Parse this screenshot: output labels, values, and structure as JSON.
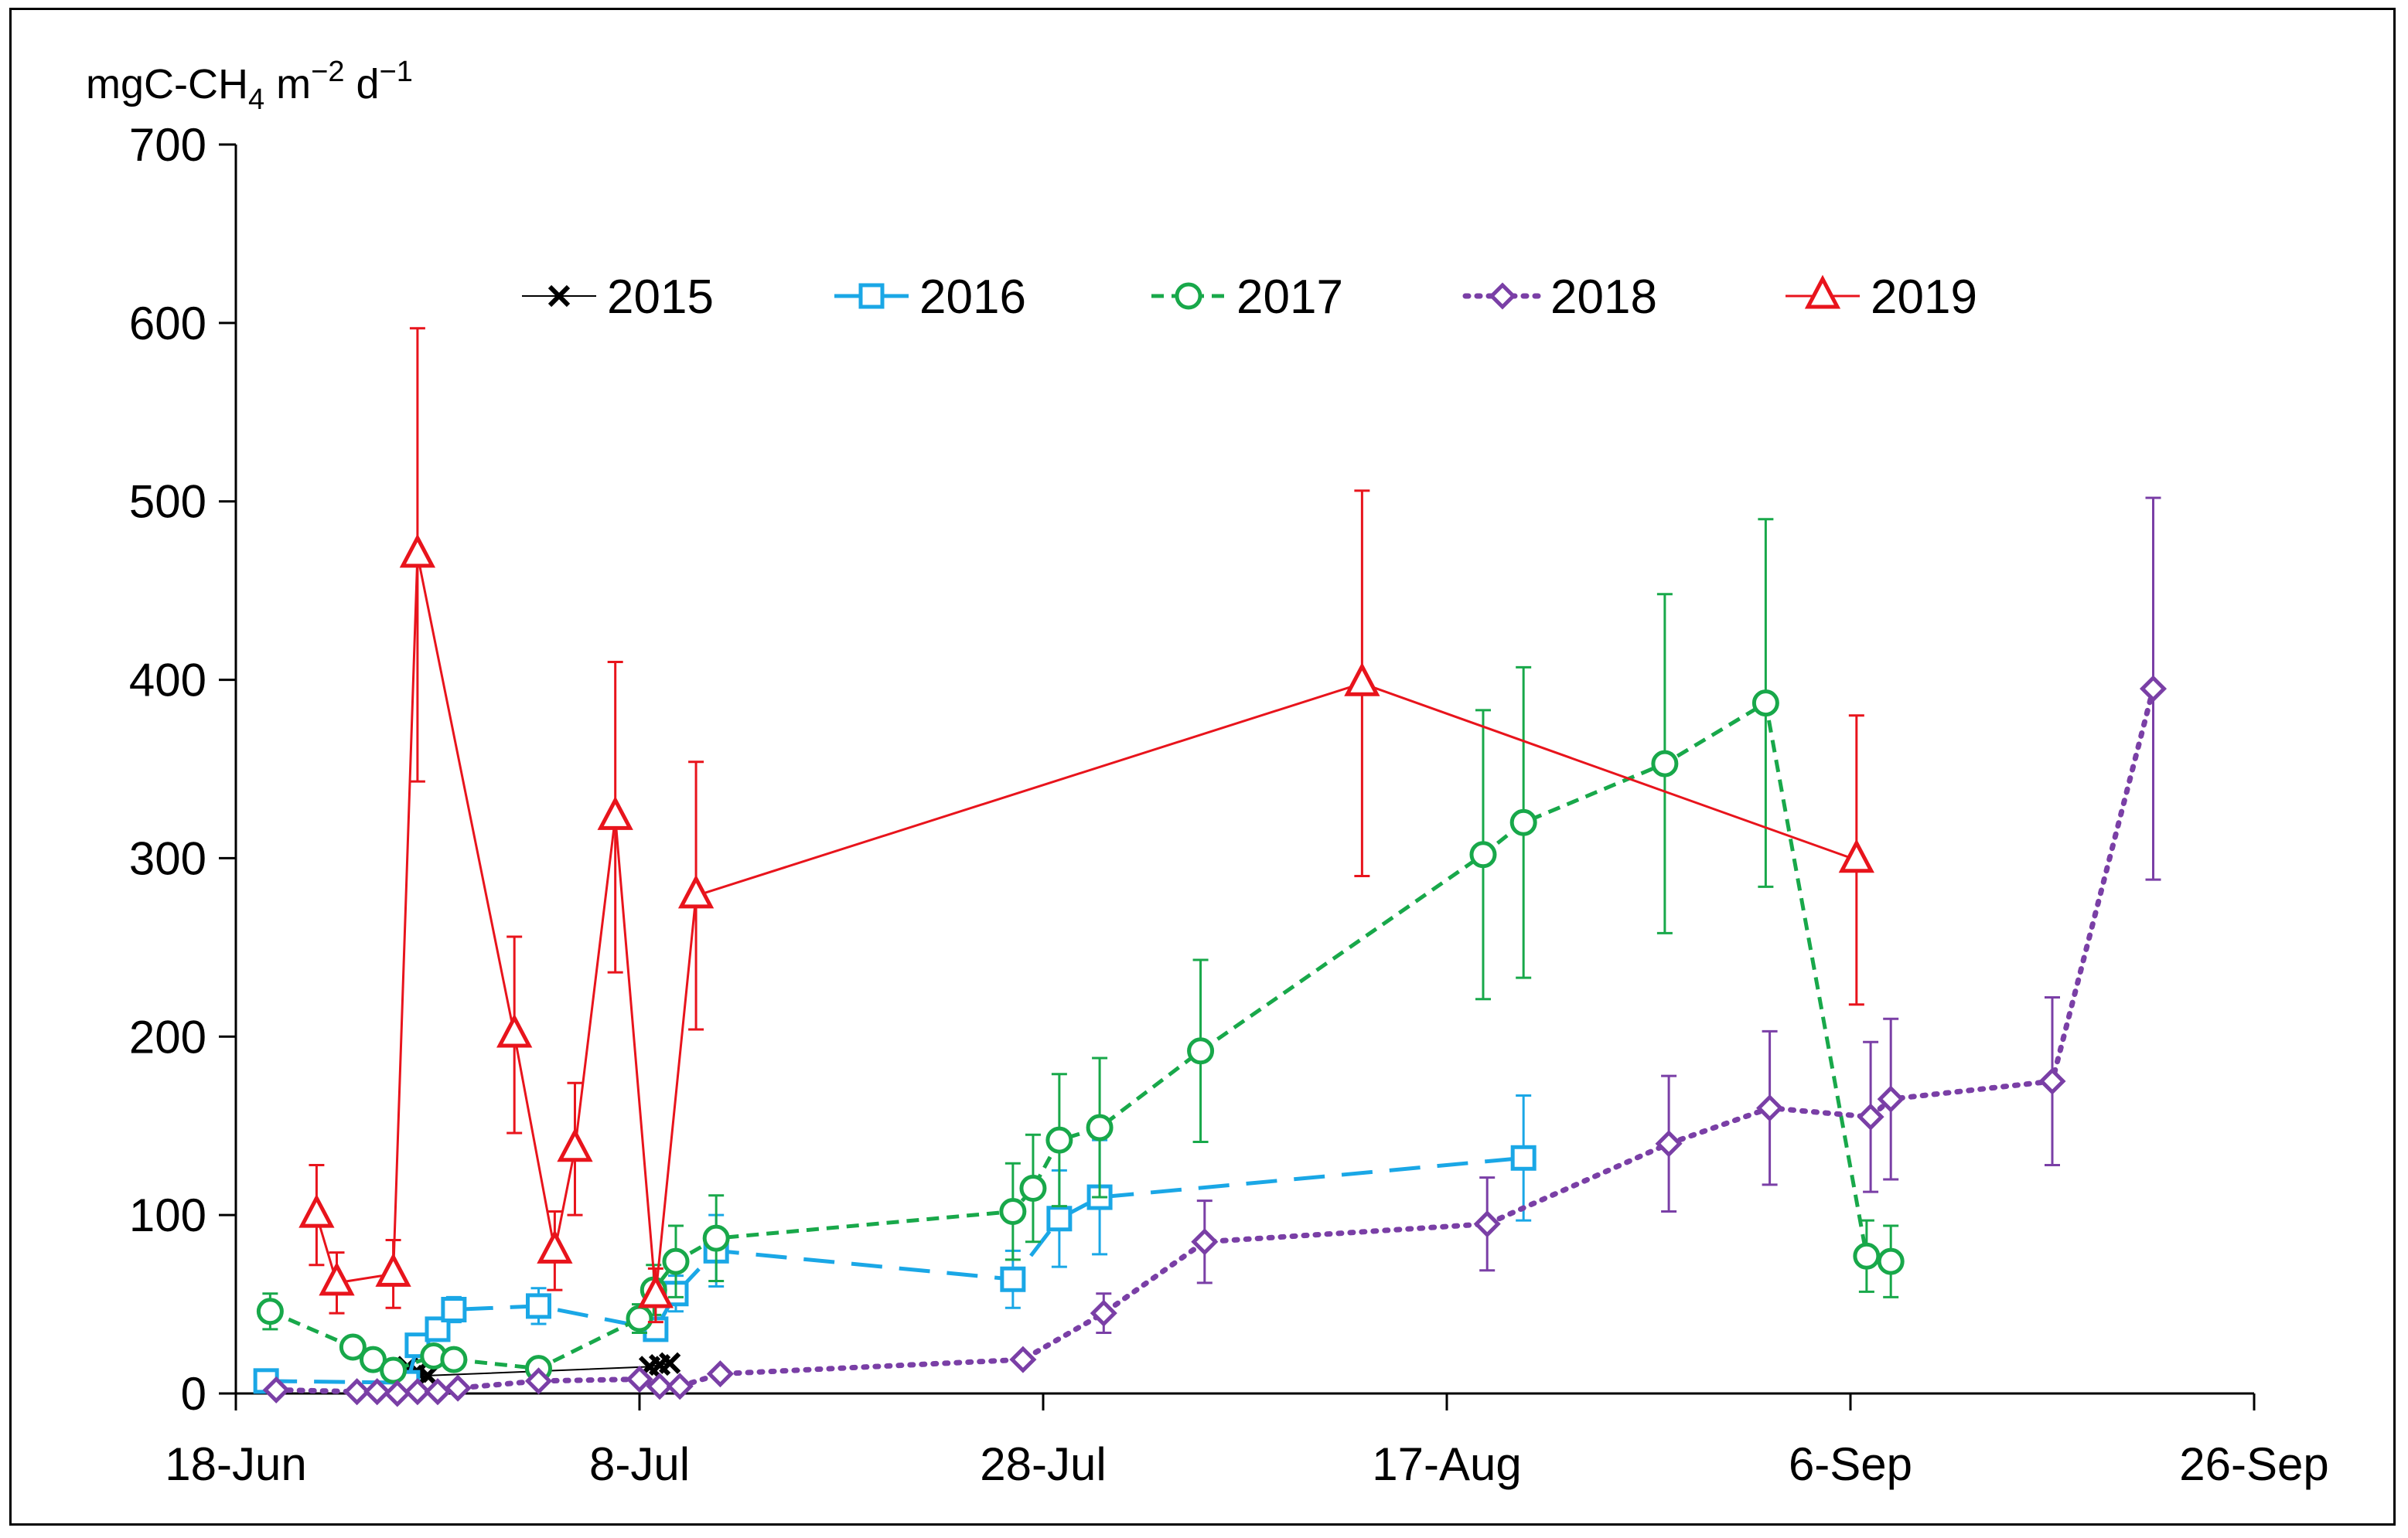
{
  "chart_data": {
    "type": "line",
    "title": "",
    "ylabel": {
      "base": "mgC-CH",
      "sub": "4",
      "unit1": " m",
      "sup1": "−2",
      "unit2": " d",
      "sup2": "−1"
    },
    "xlabel": "",
    "ylim": [
      0,
      700
    ],
    "yticks": [
      "0",
      "100",
      "200",
      "300",
      "400",
      "500",
      "600",
      "700"
    ],
    "xlim": [
      0,
      100
    ],
    "xticks": [
      {
        "day": 0,
        "label": "18-Jun"
      },
      {
        "day": 20,
        "label": "8-Jul"
      },
      {
        "day": 40,
        "label": "28-Jul"
      },
      {
        "day": 60,
        "label": "17-Aug"
      },
      {
        "day": 80,
        "label": "6-Sep"
      },
      {
        "day": 100,
        "label": "26-Sep"
      }
    ],
    "legend_position": "top",
    "series": [
      {
        "name": "2015",
        "color": "#000000",
        "marker": "x",
        "dash": "",
        "line_width": 2,
        "points": [
          {
            "x": 8.5,
            "y": 15
          },
          {
            "x": 9.0,
            "y": 12
          },
          {
            "x": 9.5,
            "y": 10
          },
          {
            "x": 20.5,
            "y": 15
          },
          {
            "x": 21.0,
            "y": 16
          },
          {
            "x": 21.5,
            "y": 17
          }
        ]
      },
      {
        "name": "2016",
        "color": "#1aa7e6",
        "marker": "square",
        "dash": "40,22",
        "line_width": 5,
        "points": [
          {
            "x": 1.5,
            "y": 7,
            "err": 0
          },
          {
            "x": 8.5,
            "y": 6,
            "err": 0
          },
          {
            "x": 9.0,
            "y": 27,
            "err": 0
          },
          {
            "x": 10.0,
            "y": 36,
            "err": 5
          },
          {
            "x": 10.8,
            "y": 47,
            "err": 7
          },
          {
            "x": 15.0,
            "y": 49,
            "err": 10
          },
          {
            "x": 20.8,
            "y": 36,
            "err": 5
          },
          {
            "x": 21.8,
            "y": 56,
            "err": 10
          },
          {
            "x": 23.8,
            "y": 80,
            "err": 20
          },
          {
            "x": 38.5,
            "y": 64,
            "err": 16
          },
          {
            "x": 40.8,
            "y": 98,
            "err": 27
          },
          {
            "x": 42.8,
            "y": 110,
            "err": 32
          },
          {
            "x": 63.8,
            "y": 132,
            "err": 35
          }
        ]
      },
      {
        "name": "2017",
        "color": "#18a84a",
        "marker": "circle",
        "dash": "16,10",
        "line_width": 5,
        "points": [
          {
            "x": 1.7,
            "y": 46,
            "err": 10
          },
          {
            "x": 5.8,
            "y": 26,
            "err": 5
          },
          {
            "x": 6.8,
            "y": 19,
            "err": 4
          },
          {
            "x": 7.8,
            "y": 13,
            "err": 3
          },
          {
            "x": 9.8,
            "y": 21,
            "err": 4
          },
          {
            "x": 10.8,
            "y": 19,
            "err": 4
          },
          {
            "x": 15.0,
            "y": 14,
            "err": 3
          },
          {
            "x": 20.0,
            "y": 42,
            "err": 8
          },
          {
            "x": 20.7,
            "y": 58,
            "err": 14
          },
          {
            "x": 21.8,
            "y": 74,
            "err": 20
          },
          {
            "x": 23.8,
            "y": 87,
            "err": 24
          },
          {
            "x": 38.5,
            "y": 102,
            "err": 27
          },
          {
            "x": 39.5,
            "y": 115,
            "err": 30
          },
          {
            "x": 40.8,
            "y": 142,
            "err": 37
          },
          {
            "x": 42.8,
            "y": 149,
            "err": 39
          },
          {
            "x": 47.8,
            "y": 192,
            "err": 51
          },
          {
            "x": 61.8,
            "y": 302,
            "err": 81
          },
          {
            "x": 63.8,
            "y": 320,
            "err": 87
          },
          {
            "x": 70.8,
            "y": 353,
            "err": 95
          },
          {
            "x": 75.8,
            "y": 387,
            "err": 103
          },
          {
            "x": 80.8,
            "y": 77,
            "err": 20
          },
          {
            "x": 82.0,
            "y": 74,
            "err": 20
          }
        ]
      },
      {
        "name": "2018",
        "color": "#7a3fa6",
        "marker": "diamond",
        "dash": "4,11",
        "line_width": 7,
        "points": [
          {
            "x": 2.0,
            "y": 2,
            "err": 0
          },
          {
            "x": 6.0,
            "y": 1,
            "err": 0
          },
          {
            "x": 7.0,
            "y": 1,
            "err": 0
          },
          {
            "x": 8.0,
            "y": 0,
            "err": 0
          },
          {
            "x": 9.0,
            "y": 1,
            "err": 0
          },
          {
            "x": 10.0,
            "y": 1,
            "err": 0
          },
          {
            "x": 11.0,
            "y": 3,
            "err": 0
          },
          {
            "x": 15.0,
            "y": 7,
            "err": 0
          },
          {
            "x": 20.0,
            "y": 8,
            "err": 0
          },
          {
            "x": 21.0,
            "y": 4,
            "err": 0
          },
          {
            "x": 22.0,
            "y": 4,
            "err": 0
          },
          {
            "x": 24.0,
            "y": 11,
            "err": 0
          },
          {
            "x": 39.0,
            "y": 19,
            "err": 0
          },
          {
            "x": 43.0,
            "y": 45,
            "err": 11
          },
          {
            "x": 48.0,
            "y": 85,
            "err": 23
          },
          {
            "x": 62.0,
            "y": 95,
            "err": 26
          },
          {
            "x": 71.0,
            "y": 140,
            "err": 38
          },
          {
            "x": 76.0,
            "y": 160,
            "err": 43
          },
          {
            "x": 81.0,
            "y": 155,
            "err": 42
          },
          {
            "x": 82.0,
            "y": 165,
            "err": 45
          },
          {
            "x": 90.0,
            "y": 175,
            "err": 47
          },
          {
            "x": 95.0,
            "y": 395,
            "err": 107
          }
        ]
      },
      {
        "name": "2019",
        "color": "#e8141c",
        "marker": "triangle",
        "dash": "",
        "line_width": 3,
        "points": [
          {
            "x": 4.0,
            "y": 100,
            "err": 28
          },
          {
            "x": 5.0,
            "y": 62,
            "err": 17
          },
          {
            "x": 7.8,
            "y": 67,
            "err": 19
          },
          {
            "x": 9.0,
            "y": 470,
            "err": 127
          },
          {
            "x": 13.8,
            "y": 201,
            "err": 55
          },
          {
            "x": 15.8,
            "y": 80,
            "err": 22
          },
          {
            "x": 16.8,
            "y": 137,
            "err": 37
          },
          {
            "x": 18.8,
            "y": 323,
            "err": 87
          },
          {
            "x": 20.8,
            "y": 55,
            "err": 15
          },
          {
            "x": 22.8,
            "y": 279,
            "err": 75
          },
          {
            "x": 55.8,
            "y": 398,
            "err": 108
          },
          {
            "x": 80.3,
            "y": 299,
            "err": 81
          }
        ]
      }
    ]
  }
}
